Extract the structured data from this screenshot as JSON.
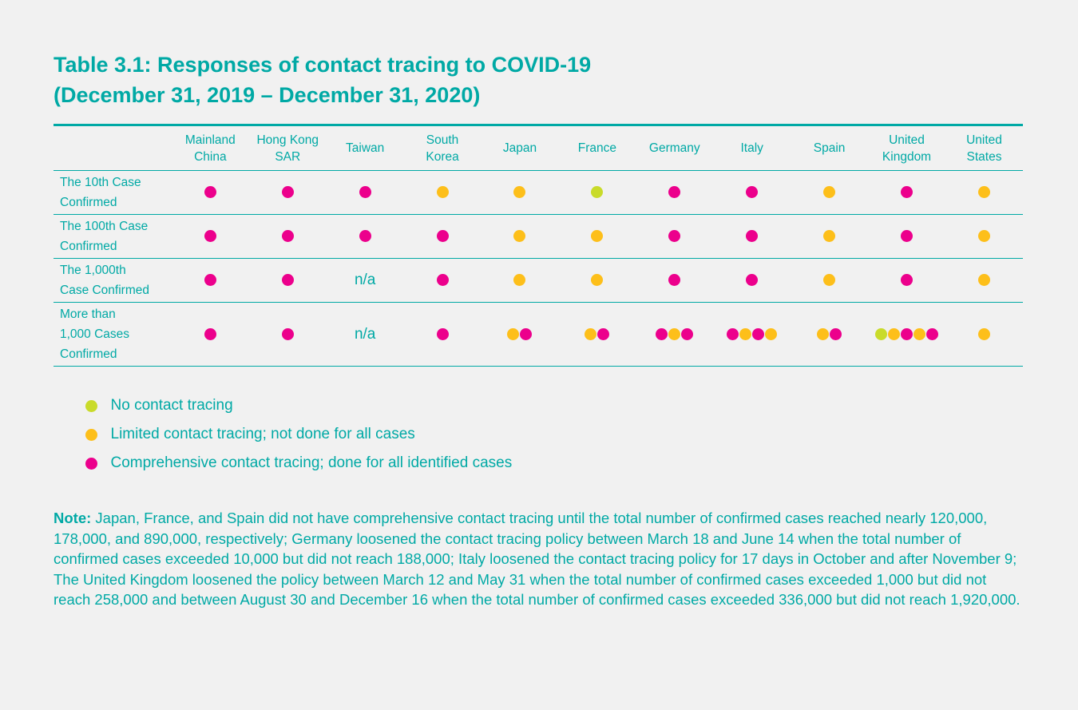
{
  "title_line1": "Table 3.1: Responses of contact tracing to COVID-19",
  "title_line2": "(December 31, 2019 – December 31, 2020)",
  "colors": {
    "text": "#00a9a5",
    "none": "#c9db2a",
    "limited": "#fdbf1a",
    "comprehensive": "#ec008c"
  },
  "columns": [
    [
      "Mainland",
      "China"
    ],
    [
      "Hong Kong",
      "SAR"
    ],
    [
      "Taiwan",
      ""
    ],
    [
      "South",
      "Korea"
    ],
    [
      "Japan",
      ""
    ],
    [
      "France",
      ""
    ],
    [
      "Germany",
      ""
    ],
    [
      "Italy",
      ""
    ],
    [
      "Spain",
      ""
    ],
    [
      "United",
      "Kingdom"
    ],
    [
      "United",
      "States"
    ]
  ],
  "rows": [
    {
      "label": [
        "The 10th Case",
        "Confirmed"
      ],
      "cells": [
        [
          "C"
        ],
        [
          "C"
        ],
        [
          "C"
        ],
        [
          "L"
        ],
        [
          "L"
        ],
        [
          "N"
        ],
        [
          "C"
        ],
        [
          "C"
        ],
        [
          "L"
        ],
        [
          "C"
        ],
        [
          "L"
        ]
      ]
    },
    {
      "label": [
        "The 100th Case",
        "Confirmed"
      ],
      "cells": [
        [
          "C"
        ],
        [
          "C"
        ],
        [
          "C"
        ],
        [
          "C"
        ],
        [
          "L"
        ],
        [
          "L"
        ],
        [
          "C"
        ],
        [
          "C"
        ],
        [
          "L"
        ],
        [
          "C"
        ],
        [
          "L"
        ]
      ]
    },
    {
      "label": [
        "The 1,000th",
        "Case Confirmed"
      ],
      "cells": [
        [
          "C"
        ],
        [
          "C"
        ],
        "n/a",
        [
          "C"
        ],
        [
          "L"
        ],
        [
          "L"
        ],
        [
          "C"
        ],
        [
          "C"
        ],
        [
          "L"
        ],
        [
          "C"
        ],
        [
          "L"
        ]
      ]
    },
    {
      "label": [
        "More than",
        "1,000 Cases",
        "Confirmed"
      ],
      "cells": [
        [
          "C"
        ],
        [
          "C"
        ],
        "n/a",
        [
          "C"
        ],
        [
          "L",
          "C"
        ],
        [
          "L",
          "C"
        ],
        [
          "C",
          "L",
          "C"
        ],
        [
          "C",
          "L",
          "C",
          "L"
        ],
        [
          "L",
          "C"
        ],
        [
          "N",
          "L",
          "C",
          "L",
          "C"
        ],
        [
          "L"
        ]
      ]
    }
  ],
  "legend": [
    {
      "code": "N",
      "label": "No contact tracing"
    },
    {
      "code": "L",
      "label": "Limited contact tracing; not done for all cases"
    },
    {
      "code": "C",
      "label": "Comprehensive contact tracing; done for all identified cases"
    }
  ],
  "note_label": "Note:",
  "note_text": " Japan, France, and Spain did not have comprehensive contact tracing until the total number of confirmed cases reached nearly 120,000, 178,000, and 890,000, respectively; Germany loosened the contact tracing policy between March 18 and June 14 when the total number of confirmed cases exceeded 10,000 but did not reach 188,000; Italy loosened the contact tracing policy for 17 days in October and after November 9; The United Kingdom loosened the policy between March 12 and May 31 when the total number of confirmed cases exceeded 1,000 but did not reach 258,000 and between August 30 and December 16 when the total number of confirmed cases exceeded 336,000 but did not reach 1,920,000."
}
